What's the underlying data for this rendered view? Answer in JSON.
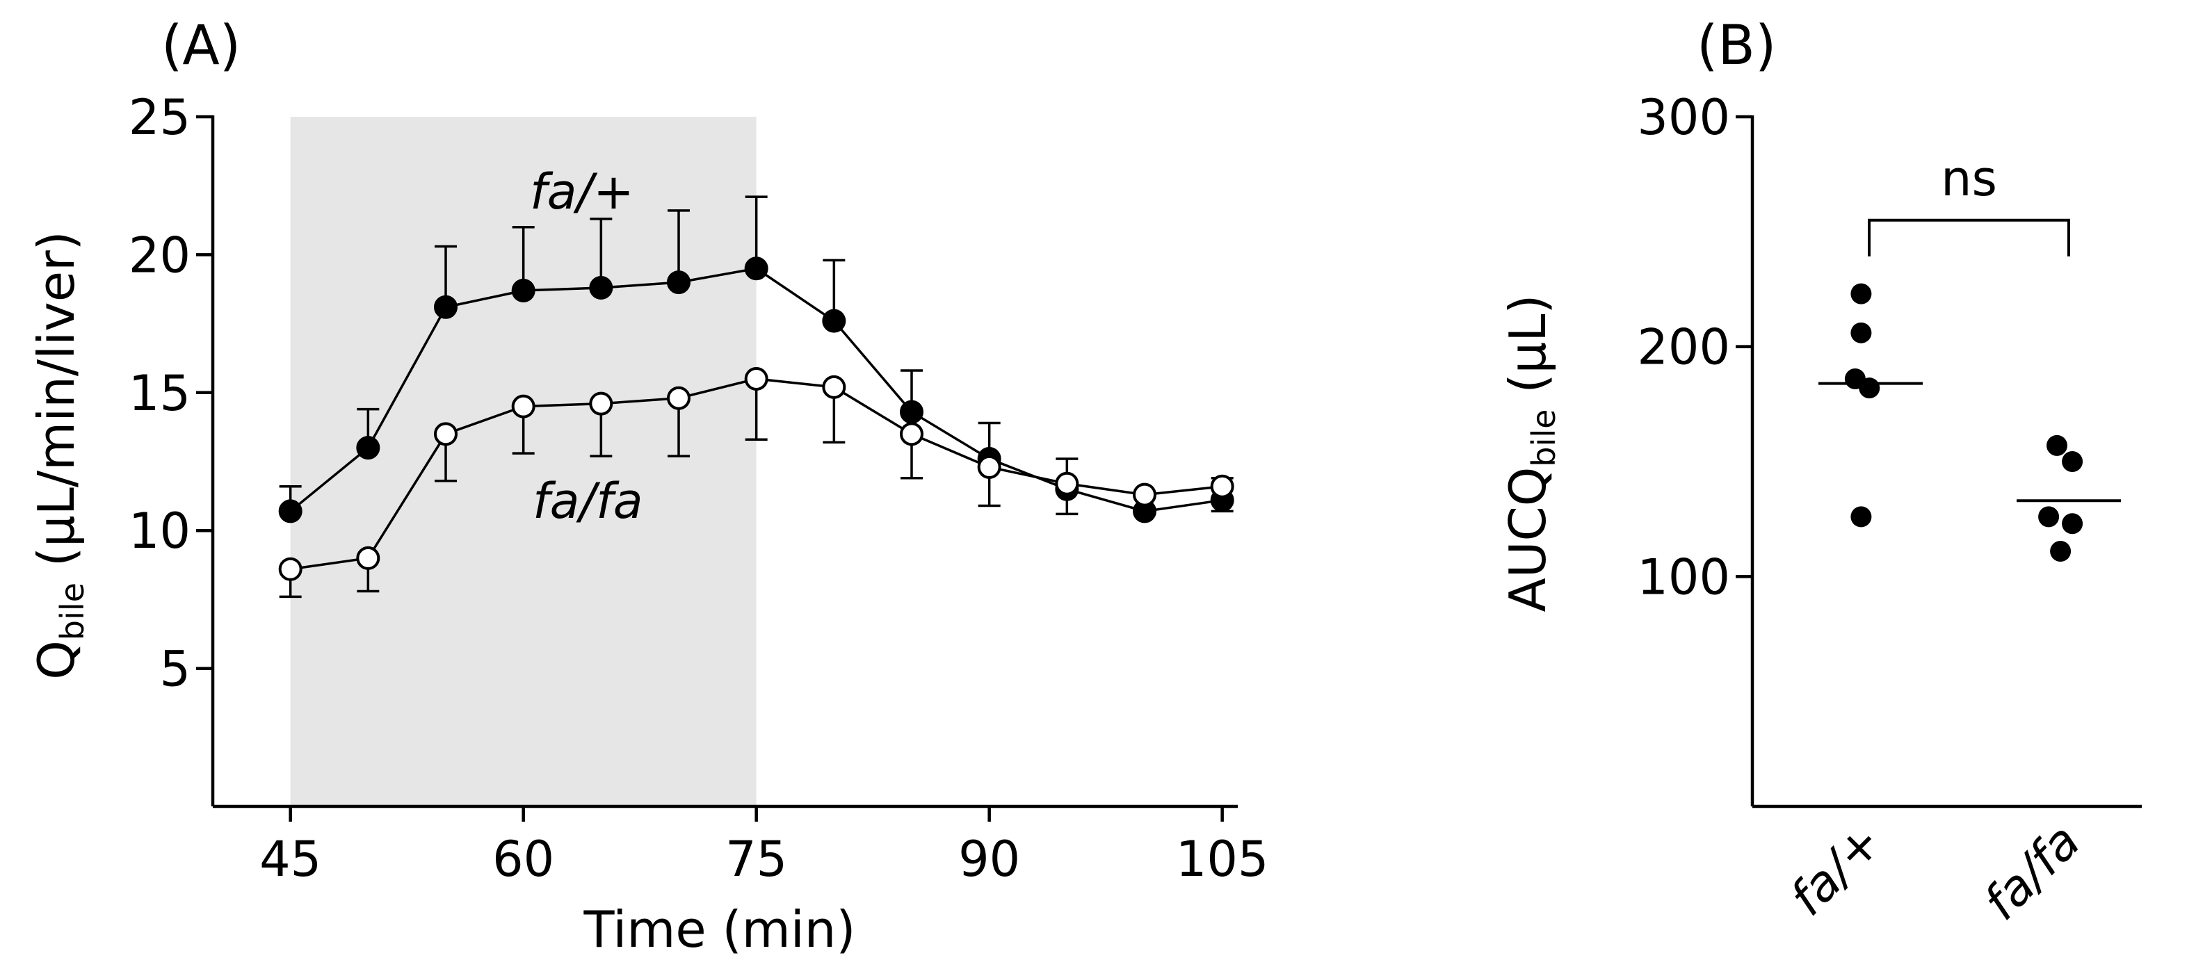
{
  "chart_data": [
    {
      "type": "line",
      "panel_label": "(A)",
      "xlabel": "Time (min)",
      "ylabel_main": "Q",
      "ylabel_sub": "bile",
      "ylabel_units": " (µL/min/liver)",
      "xlim": [
        40,
        106
      ],
      "ylim": [
        0,
        25
      ],
      "xticks": [
        45,
        60,
        75,
        90,
        105
      ],
      "xtick_labels": [
        "45",
        "60",
        "75",
        "90",
        "105"
      ],
      "yticks": [
        5,
        10,
        15,
        20,
        25
      ],
      "ytick_labels": [
        "5",
        "10",
        "15",
        "20",
        "25"
      ],
      "shaded_region": [
        45,
        75
      ],
      "x": [
        45,
        50,
        55,
        60,
        65,
        70,
        75,
        80,
        85,
        90,
        95,
        100,
        105
      ],
      "series": [
        {
          "name": "fa/+",
          "marker": "filled-circle",
          "values": [
            10.7,
            13.0,
            18.1,
            18.7,
            18.8,
            19.0,
            19.5,
            17.6,
            14.3,
            12.6,
            11.5,
            10.7,
            11.1
          ],
          "error": [
            0.9,
            1.4,
            2.2,
            2.3,
            2.5,
            2.6,
            2.6,
            2.2,
            1.5,
            1.3,
            1.1,
            0.5,
            0.8
          ]
        },
        {
          "name": "fa/fa",
          "marker": "open-circle",
          "values": [
            8.6,
            9.0,
            13.5,
            14.5,
            14.6,
            14.8,
            15.5,
            15.2,
            13.5,
            12.3,
            11.7,
            11.3,
            11.6
          ],
          "error": [
            1.0,
            1.2,
            1.7,
            1.7,
            1.9,
            2.1,
            2.2,
            2.0,
            1.6,
            1.4,
            1.1,
            0.5,
            0.9
          ]
        }
      ]
    },
    {
      "type": "scatter",
      "panel_label": "(B)",
      "ylabel_main": "AUCQ",
      "ylabel_sub": "bile",
      "ylabel_units": " (µL)",
      "ylim": [
        0,
        300
      ],
      "yticks": [
        100,
        200,
        300
      ],
      "ytick_labels": [
        "100",
        "200",
        "300"
      ],
      "categories": [
        "fa/+",
        "fa/fa"
      ],
      "groups": [
        {
          "name": "fa/+",
          "points": [
            [
              -0.08,
              223
            ],
            [
              -0.08,
              206
            ],
            [
              -0.13,
              186
            ],
            [
              -0.01,
              182
            ],
            [
              -0.08,
              126
            ]
          ],
          "mean": 184
        },
        {
          "name": "fa/fa",
          "points": [
            [
              -0.1,
              157
            ],
            [
              0.03,
              150
            ],
            [
              -0.17,
              126
            ],
            [
              0.03,
              123
            ],
            [
              -0.07,
              111
            ]
          ],
          "mean": 133
        }
      ],
      "significance": {
        "label": "ns",
        "between": [
          "fa/+",
          "fa/fa"
        ],
        "at": 255
      }
    }
  ]
}
